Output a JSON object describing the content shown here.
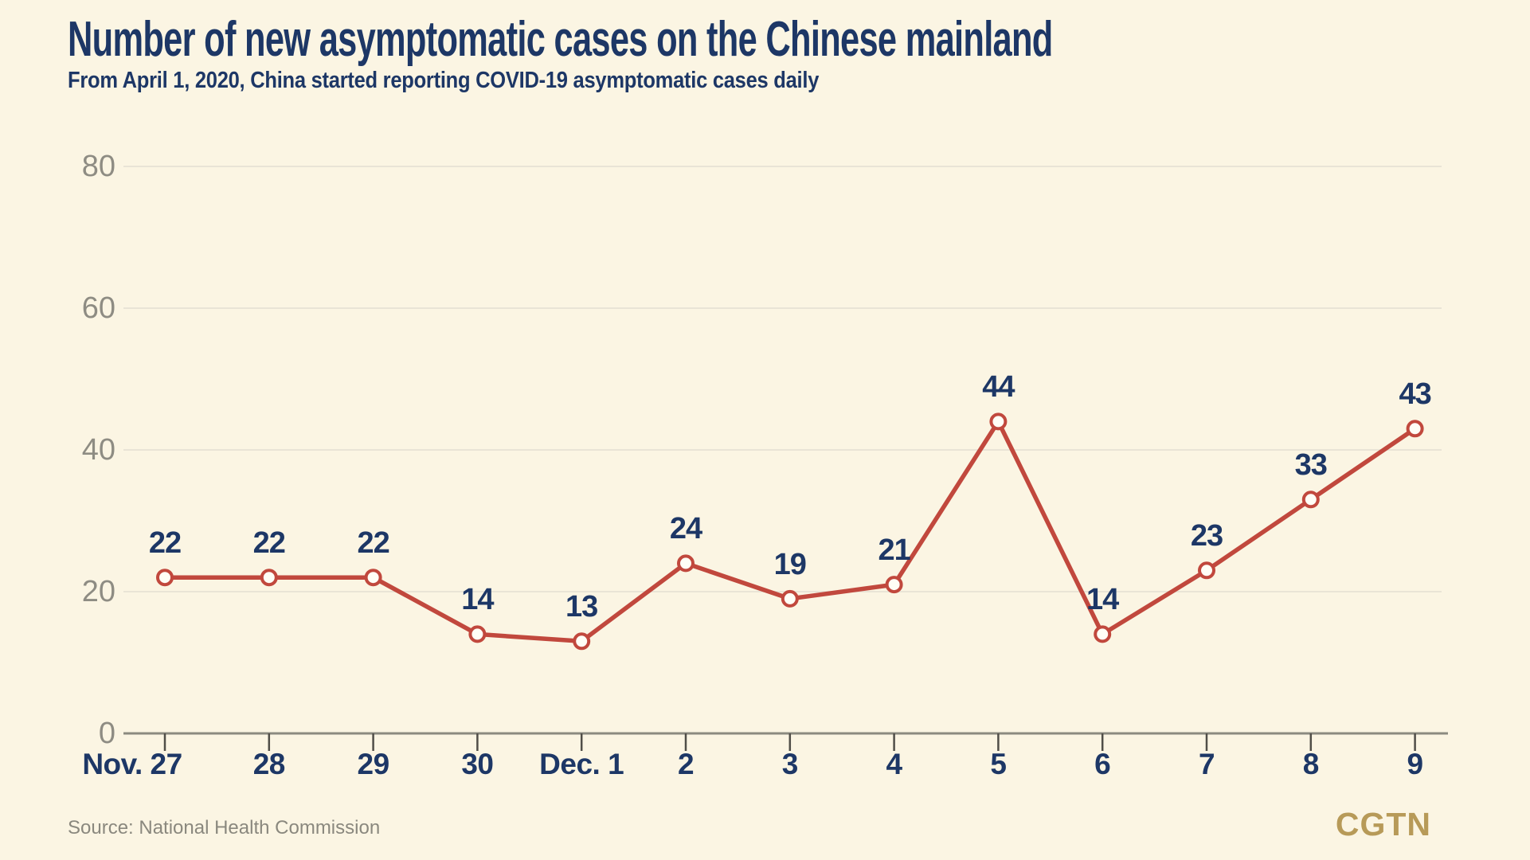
{
  "header": {
    "title": "Number of new asymptomatic cases on the Chinese mainland",
    "subtitle": "From April 1, 2020, China started reporting COVID-19 asymptomatic cases daily"
  },
  "chart_data": {
    "type": "line",
    "categories": [
      "Nov. 27",
      "28",
      "29",
      "30",
      "Dec. 1",
      "2",
      "3",
      "4",
      "5",
      "6",
      "7",
      "8",
      "9"
    ],
    "values": [
      22,
      22,
      22,
      14,
      13,
      24,
      19,
      21,
      44,
      14,
      23,
      33,
      43
    ],
    "title": "Number of new asymptomatic cases on the Chinese mainland",
    "xlabel": "",
    "ylabel": "",
    "ylim": [
      0,
      80
    ],
    "yticks": [
      0,
      20,
      40,
      60,
      80
    ],
    "grid": "horizontal gridlines on",
    "legend": "none",
    "marker": "open-circle"
  },
  "footer": {
    "source": "Source: National Health Commission",
    "logo": "CGTN"
  },
  "colors": {
    "background": "#FBF5E3",
    "navy": "#1D3766",
    "red": "#C1483D",
    "gold": "#B79A58",
    "grid_line": "#E9E4D6",
    "axis_gray": "#8B8A80",
    "tick_gray": "#504E48",
    "y_label_gray": "#8E8C83",
    "source_gray": "#8A887E",
    "dot_fill": "#FFFEF6"
  }
}
